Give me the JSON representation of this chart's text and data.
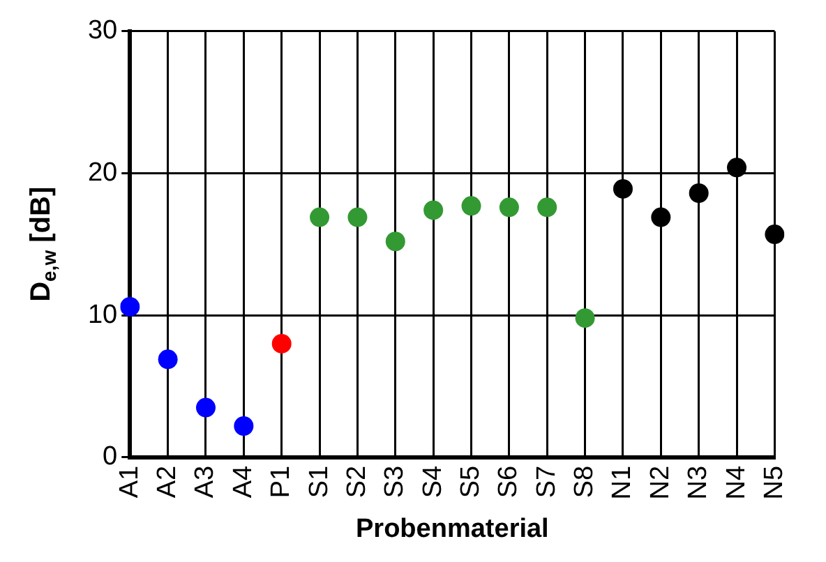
{
  "chart_data": {
    "type": "scatter",
    "xlabel": "Probenmaterial",
    "ylabel": "D$_{e,w}$ [dB]",
    "categories": [
      "A1",
      "A2",
      "A3",
      "A4",
      "P1",
      "S1",
      "S2",
      "S3",
      "S4",
      "S5",
      "S6",
      "S7",
      "S8",
      "N1",
      "N2",
      "N3",
      "N4",
      "N5"
    ],
    "series": [
      {
        "values": [
          10.6,
          6.9,
          3.5,
          2.2,
          8.0,
          16.9,
          16.9,
          15.2,
          17.4,
          17.7,
          17.6,
          17.6,
          9.8,
          18.9,
          16.9,
          18.6,
          20.4,
          15.7
        ],
        "colors": [
          "#0000ff",
          "#0000ff",
          "#0000ff",
          "#0000ff",
          "#ff0000",
          "#339933",
          "#339933",
          "#339933",
          "#339933",
          "#339933",
          "#339933",
          "#339933",
          "#339933",
          "#000000",
          "#000000",
          "#000000",
          "#000000",
          "#000000"
        ]
      }
    ],
    "ylim": [
      0,
      30
    ],
    "yticks": [
      0,
      10,
      20,
      30
    ],
    "grid": true,
    "marker": "circle",
    "legend": false
  }
}
